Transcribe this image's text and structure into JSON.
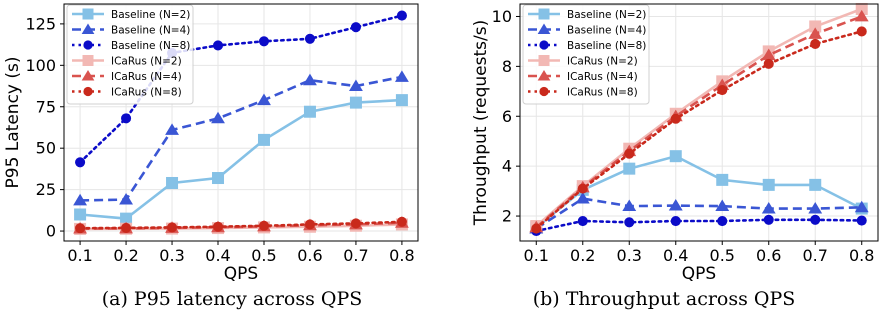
{
  "chart_data": [
    {
      "type": "line",
      "xlabel": "QPS",
      "ylabel": "P95 Latency (s)",
      "caption": "(a) P95 latency across QPS",
      "x": [
        0.1,
        0.2,
        0.3,
        0.4,
        0.5,
        0.6,
        0.7,
        0.8
      ],
      "x_ticks": [
        "0.1",
        "0.2",
        "0.3",
        "0.4",
        "0.5",
        "0.6",
        "0.7",
        "0.8"
      ],
      "xlim": [
        0.065,
        0.835
      ],
      "ylim": [
        -6,
        137
      ],
      "y_ticks": [
        0,
        25,
        50,
        75,
        100,
        125
      ],
      "grid": true,
      "legend_position": "top-left",
      "series": [
        {
          "name": "Baseline (N=2)",
          "color": "#85c1e6",
          "marker": "square",
          "dash": "solid",
          "values": [
            10,
            7.5,
            29,
            32,
            55,
            72,
            77.5,
            79
          ]
        },
        {
          "name": "Baseline (N=4)",
          "color": "#3a56d4",
          "marker": "triangle",
          "dash": "dashed",
          "values": [
            18.5,
            19,
            61,
            68,
            79,
            91,
            87.5,
            93
          ]
        },
        {
          "name": "Baseline (N=8)",
          "color": "#0b0bc8",
          "marker": "circle",
          "dash": "dotted",
          "values": [
            41.5,
            68,
            107.5,
            112,
            114.5,
            116,
            123,
            130
          ]
        },
        {
          "name": "ICaRus (N=2)",
          "color": "#f2b8b4",
          "marker": "square",
          "dash": "solid",
          "values": [
            1.3,
            1.4,
            1.5,
            1.8,
            2.2,
            2.6,
            3.2,
            4.0
          ]
        },
        {
          "name": "ICaRus (N=4)",
          "color": "#d9534f",
          "marker": "triangle",
          "dash": "dashed",
          "values": [
            1.5,
            1.6,
            1.9,
            2.3,
            2.8,
            3.5,
            4.0,
            5.0
          ]
        },
        {
          "name": "ICaRus (N=8)",
          "color": "#c9291c",
          "marker": "circle",
          "dash": "dotted",
          "values": [
            1.7,
            1.9,
            2.2,
            2.6,
            3.2,
            4.0,
            4.6,
            5.6
          ]
        }
      ]
    },
    {
      "type": "line",
      "xlabel": "QPS",
      "ylabel": "Throughput (requests/s)",
      "caption": "(b) Throughput across QPS",
      "x": [
        0.1,
        0.2,
        0.3,
        0.4,
        0.5,
        0.6,
        0.7,
        0.8
      ],
      "x_ticks": [
        "0.1",
        "0.2",
        "0.3",
        "0.4",
        "0.5",
        "0.6",
        "0.7",
        "0.8"
      ],
      "xlim": [
        0.065,
        0.835
      ],
      "ylim": [
        1.0,
        10.5
      ],
      "y_ticks": [
        2,
        4,
        6,
        8,
        10
      ],
      "grid": true,
      "legend_position": "top-left",
      "series": [
        {
          "name": "Baseline (N=2)",
          "color": "#85c1e6",
          "marker": "square",
          "dash": "solid",
          "values": [
            1.55,
            3.05,
            3.9,
            4.4,
            3.45,
            3.25,
            3.25,
            2.3
          ]
        },
        {
          "name": "Baseline (N=4)",
          "color": "#3a56d4",
          "marker": "triangle",
          "dash": "dashed",
          "values": [
            1.5,
            2.7,
            2.4,
            2.42,
            2.4,
            2.3,
            2.3,
            2.35
          ]
        },
        {
          "name": "Baseline (N=8)",
          "color": "#0b0bc8",
          "marker": "circle",
          "dash": "dotted",
          "values": [
            1.4,
            1.8,
            1.75,
            1.8,
            1.8,
            1.85,
            1.85,
            1.82
          ]
        },
        {
          "name": "ICaRus (N=2)",
          "color": "#f2b8b4",
          "marker": "square",
          "dash": "solid",
          "values": [
            1.6,
            3.2,
            4.7,
            6.1,
            7.4,
            8.6,
            9.6,
            10.3
          ]
        },
        {
          "name": "ICaRus (N=4)",
          "color": "#d9534f",
          "marker": "triangle",
          "dash": "dashed",
          "values": [
            1.55,
            3.15,
            4.6,
            6.0,
            7.25,
            8.45,
            9.3,
            10.0
          ]
        },
        {
          "name": "ICaRus (N=8)",
          "color": "#c9291c",
          "marker": "circle",
          "dash": "dotted",
          "values": [
            1.5,
            3.1,
            4.5,
            5.9,
            7.05,
            8.1,
            8.9,
            9.4
          ]
        }
      ]
    }
  ]
}
